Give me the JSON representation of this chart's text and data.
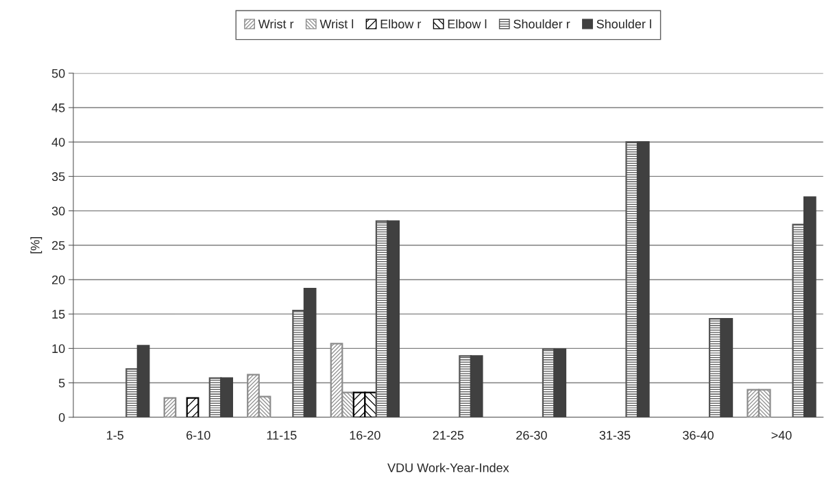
{
  "chart_data": {
    "type": "bar",
    "xlabel": "VDU Work-Year-Index",
    "ylabel": "[%]",
    "categories": [
      "1-5",
      "6-10",
      "11-15",
      "16-20",
      "21-25",
      "26-30",
      "31-35",
      "36-40",
      ">40"
    ],
    "series": [
      {
        "name": "Wrist r",
        "color": "#8c8c8c",
        "values": [
          null,
          2.8,
          6.2,
          10.7,
          null,
          null,
          null,
          null,
          4.0
        ]
      },
      {
        "name": "Wrist l",
        "color": "#8c8c8c",
        "values": [
          null,
          null,
          3.0,
          3.6,
          null,
          null,
          null,
          null,
          4.0
        ]
      },
      {
        "name": "Elbow r",
        "color": "#000000",
        "values": [
          null,
          2.8,
          null,
          3.6,
          null,
          null,
          null,
          null,
          null
        ]
      },
      {
        "name": "Elbow l",
        "color": "#000000",
        "values": [
          null,
          null,
          null,
          3.6,
          null,
          null,
          null,
          null,
          null
        ]
      },
      {
        "name": "Shoulder r",
        "color": "#555555",
        "values": [
          7.0,
          5.7,
          15.5,
          28.5,
          8.9,
          9.9,
          40.0,
          14.3,
          28.0
        ]
      },
      {
        "name": "Shoulder l",
        "color": "#404040",
        "values": [
          10.4,
          5.7,
          18.7,
          28.5,
          8.9,
          9.9,
          40.0,
          14.3,
          32.0
        ]
      }
    ],
    "ylim": [
      0,
      50
    ],
    "yticks": [
      0,
      5,
      10,
      15,
      20,
      25,
      30,
      35,
      40,
      45,
      50
    ],
    "grid": "y",
    "legend": "top"
  }
}
